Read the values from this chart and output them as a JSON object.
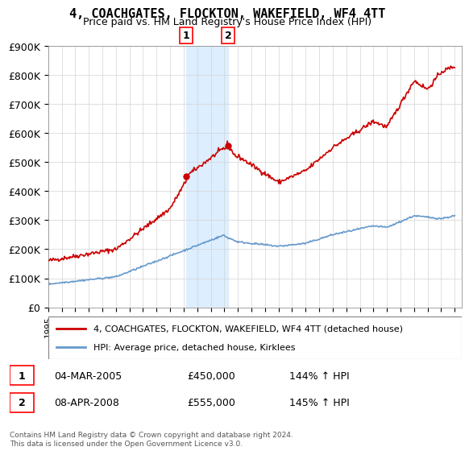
{
  "title": "4, COACHGATES, FLOCKTON, WAKEFIELD, WF4 4TT",
  "subtitle": "Price paid vs. HM Land Registry's House Price Index (HPI)",
  "legend_line1": "4, COACHGATES, FLOCKTON, WAKEFIELD, WF4 4TT (detached house)",
  "legend_line2": "HPI: Average price, detached house, Kirklees",
  "transaction1_label": "1",
  "transaction1_date": "04-MAR-2005",
  "transaction1_price": "£450,000",
  "transaction1_hpi": "144% ↑ HPI",
  "transaction2_label": "2",
  "transaction2_date": "08-APR-2008",
  "transaction2_price": "£555,000",
  "transaction2_hpi": "145% ↑ HPI",
  "footer": "Contains HM Land Registry data © Crown copyright and database right 2024.\nThis data is licensed under the Open Government Licence v3.0.",
  "line_color_red": "#cc0000",
  "line_color_blue": "#6699cc",
  "shade_color": "#ddeeff",
  "marker1_x": 2005.17,
  "marker1_y": 450000,
  "marker2_x": 2008.27,
  "marker2_y": 555000,
  "shade_x1": 2005.17,
  "shade_x2": 2008.27,
  "ylim": [
    0,
    900000
  ],
  "xlim": [
    1995,
    2025.5
  ]
}
